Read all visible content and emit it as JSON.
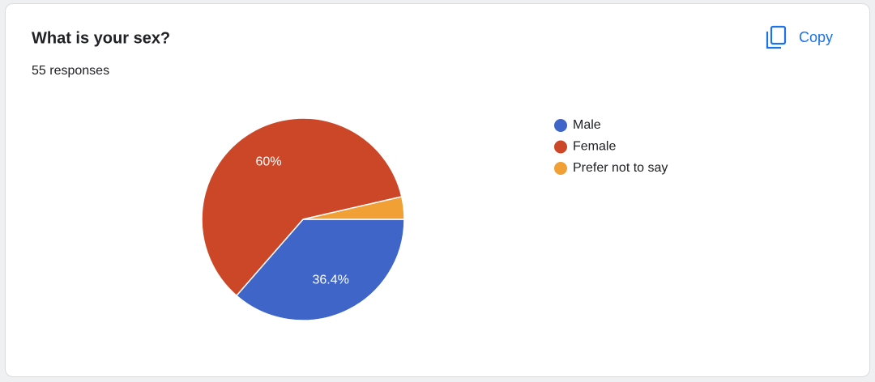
{
  "actions": {
    "copy": "Copy"
  },
  "chart_data": {
    "type": "pie",
    "title": "What is your sex?",
    "subtitle": "55 responses",
    "categories": [
      "Male",
      "Female",
      "Prefer not to say"
    ],
    "values": [
      36.4,
      60,
      3.6
    ],
    "value_labels": [
      "36.4%",
      "60%",
      null
    ],
    "colors": [
      "#3f65c8",
      "#cc4727",
      "#f0a035"
    ],
    "legend": "right"
  }
}
